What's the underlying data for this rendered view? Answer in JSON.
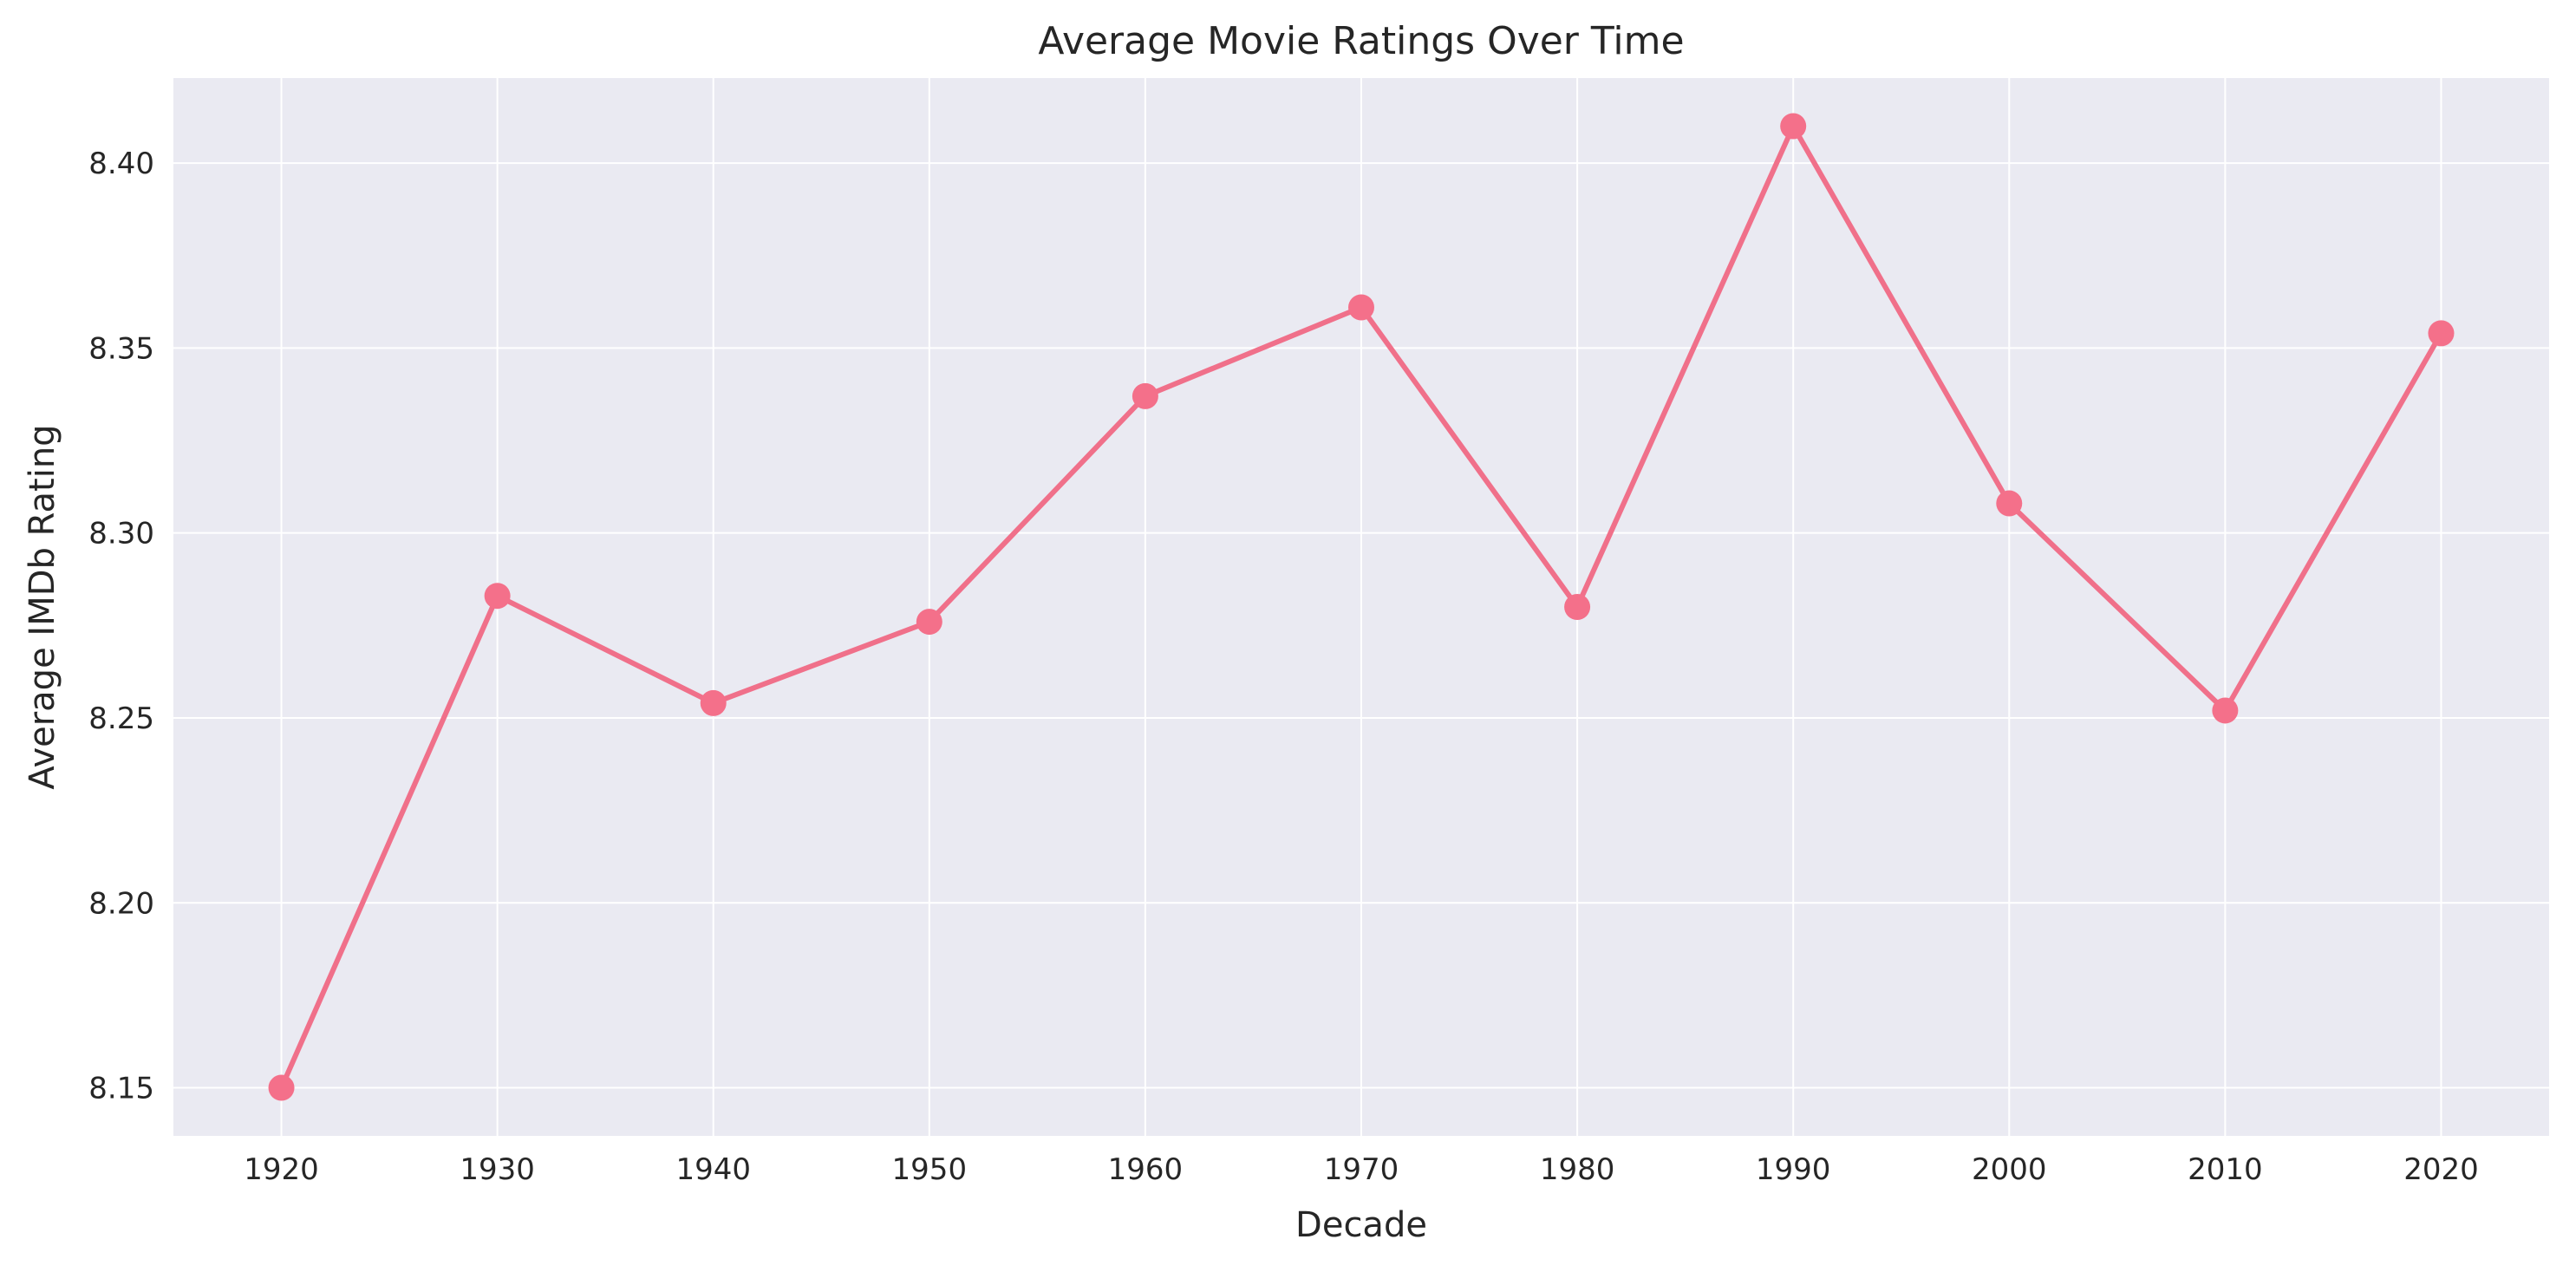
{
  "chart_data": {
    "type": "line",
    "title": "Average Movie Ratings Over Time",
    "xlabel": "Decade",
    "ylabel": "Average IMDb Rating",
    "x": [
      1920,
      1930,
      1940,
      1950,
      1960,
      1970,
      1980,
      1990,
      2000,
      2010,
      2020
    ],
    "series": [
      {
        "values": [
          8.15,
          8.283,
          8.254,
          8.276,
          8.337,
          8.361,
          8.28,
          8.41,
          8.308,
          8.252,
          8.354
        ]
      }
    ],
    "xlim": [
      1915,
      2025
    ],
    "ylim": [
      8.137,
      8.423
    ],
    "xticks": [
      "1920",
      "1930",
      "1940",
      "1950",
      "1960",
      "1970",
      "1980",
      "1990",
      "2000",
      "2010",
      "2020"
    ],
    "yticks": [
      "8.15",
      "8.20",
      "8.25",
      "8.30",
      "8.35",
      "8.40"
    ],
    "grid": true,
    "legend": "none",
    "colors": {
      "line": "#f0708a",
      "marker": "#f4708a",
      "plot_background": "#eaeaf2",
      "grid": "#ffffff",
      "text": "#262626"
    }
  }
}
